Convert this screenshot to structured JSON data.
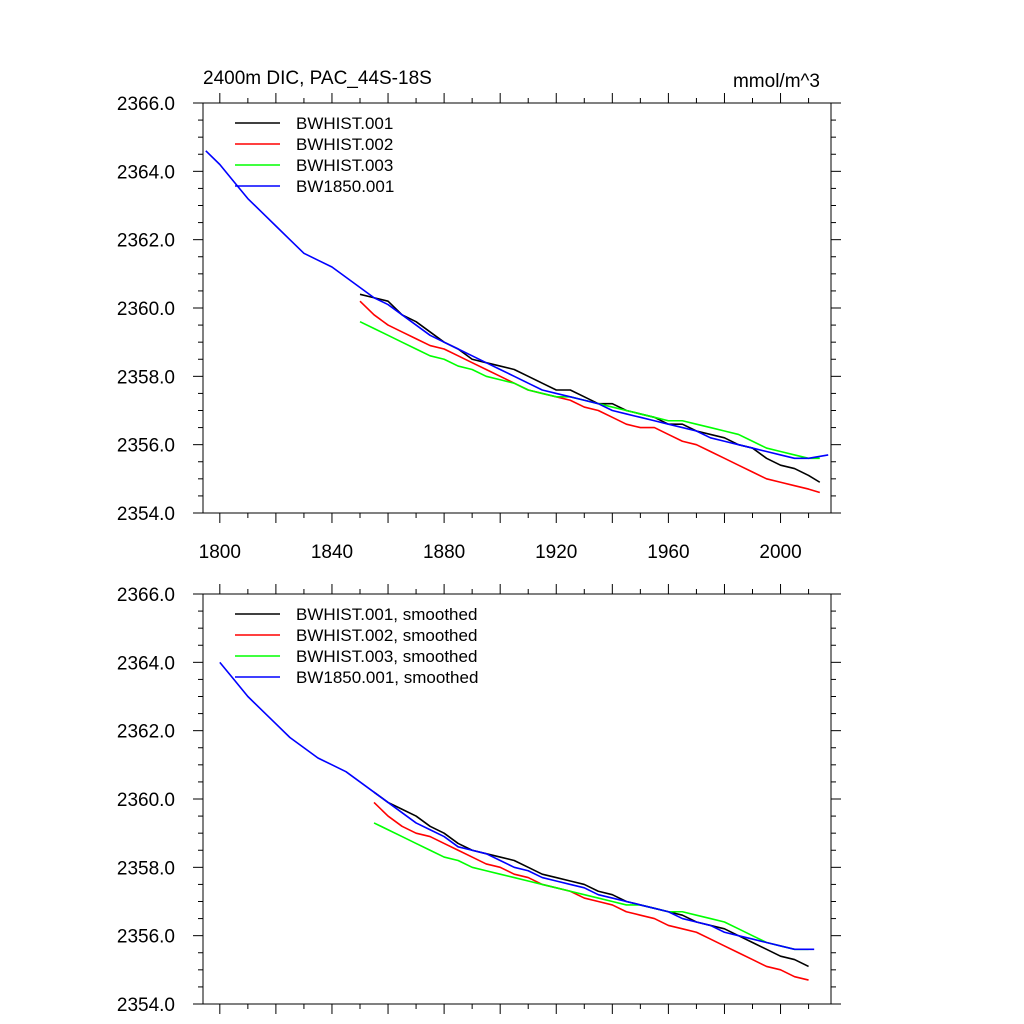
{
  "chart_data": [
    {
      "type": "line",
      "title": "2400m DIC, PAC_44S-18S",
      "units": "mmol/m^3",
      "xlabel": "",
      "ylabel": "",
      "xlim": [
        1794,
        2018
      ],
      "ylim": [
        2354.0,
        2366.0
      ],
      "xticks": [
        "1800",
        "1840",
        "1880",
        "1920",
        "1960",
        "2000"
      ],
      "yticks": [
        "2354.0",
        "2356.0",
        "2358.0",
        "2360.0",
        "2362.0",
        "2364.0",
        "2366.0"
      ],
      "grid": false,
      "legend_position": "top-left",
      "series": [
        {
          "name": "BWHIST.001",
          "color": "#000000",
          "x": [
            1850,
            1855,
            1860,
            1865,
            1870,
            1875,
            1880,
            1885,
            1890,
            1895,
            1900,
            1905,
            1910,
            1915,
            1920,
            1925,
            1930,
            1935,
            1940,
            1945,
            1950,
            1955,
            1960,
            1965,
            1970,
            1975,
            1980,
            1985,
            1990,
            1995,
            2000,
            2005,
            2010,
            2014
          ],
          "y": [
            2360.4,
            2360.3,
            2360.2,
            2359.8,
            2359.6,
            2359.3,
            2359.0,
            2358.8,
            2358.5,
            2358.4,
            2358.3,
            2358.2,
            2358.0,
            2357.8,
            2357.6,
            2357.6,
            2357.4,
            2357.2,
            2357.2,
            2357.0,
            2356.9,
            2356.8,
            2356.6,
            2356.6,
            2356.4,
            2356.3,
            2356.2,
            2356.0,
            2355.9,
            2355.6,
            2355.4,
            2355.3,
            2355.1,
            2354.9
          ]
        },
        {
          "name": "BWHIST.002",
          "color": "#ff0000",
          "x": [
            1850,
            1855,
            1860,
            1865,
            1870,
            1875,
            1880,
            1885,
            1890,
            1895,
            1900,
            1905,
            1910,
            1915,
            1920,
            1925,
            1930,
            1935,
            1940,
            1945,
            1950,
            1955,
            1960,
            1965,
            1970,
            1975,
            1980,
            1985,
            1990,
            1995,
            2000,
            2005,
            2010,
            2014
          ],
          "y": [
            2360.2,
            2359.8,
            2359.5,
            2359.3,
            2359.1,
            2358.9,
            2358.8,
            2358.6,
            2358.4,
            2358.2,
            2358.0,
            2357.8,
            2357.6,
            2357.5,
            2357.4,
            2357.3,
            2357.1,
            2357.0,
            2356.8,
            2356.6,
            2356.5,
            2356.5,
            2356.3,
            2356.1,
            2356.0,
            2355.8,
            2355.6,
            2355.4,
            2355.2,
            2355.0,
            2354.9,
            2354.8,
            2354.7,
            2354.6
          ]
        },
        {
          "name": "BWHIST.003",
          "color": "#00ff00",
          "x": [
            1850,
            1855,
            1860,
            1865,
            1870,
            1875,
            1880,
            1885,
            1890,
            1895,
            1900,
            1905,
            1910,
            1915,
            1920,
            1925,
            1930,
            1935,
            1940,
            1945,
            1950,
            1955,
            1960,
            1965,
            1970,
            1975,
            1980,
            1985,
            1990,
            1995,
            2000,
            2005,
            2010,
            2014
          ],
          "y": [
            2359.6,
            2359.4,
            2359.2,
            2359.0,
            2358.8,
            2358.6,
            2358.5,
            2358.3,
            2358.2,
            2358.0,
            2357.9,
            2357.8,
            2357.6,
            2357.5,
            2357.4,
            2357.4,
            2357.3,
            2357.2,
            2357.1,
            2357.0,
            2356.9,
            2356.8,
            2356.7,
            2356.7,
            2356.6,
            2356.5,
            2356.4,
            2356.3,
            2356.1,
            2355.9,
            2355.8,
            2355.7,
            2355.6,
            2355.6
          ]
        },
        {
          "name": "BW1850.001",
          "color": "#0000ff",
          "x": [
            1795,
            1800,
            1805,
            1810,
            1815,
            1820,
            1825,
            1830,
            1835,
            1840,
            1845,
            1850,
            1855,
            1860,
            1865,
            1870,
            1875,
            1880,
            1885,
            1890,
            1895,
            1900,
            1905,
            1910,
            1915,
            1920,
            1925,
            1930,
            1935,
            1940,
            1945,
            1950,
            1955,
            1960,
            1965,
            1970,
            1975,
            1980,
            1985,
            1990,
            1995,
            2000,
            2005,
            2010,
            2017
          ],
          "y": [
            2364.6,
            2364.2,
            2363.7,
            2363.2,
            2362.8,
            2362.4,
            2362.0,
            2361.6,
            2361.4,
            2361.2,
            2360.9,
            2360.6,
            2360.3,
            2360.1,
            2359.8,
            2359.5,
            2359.2,
            2359.0,
            2358.8,
            2358.6,
            2358.4,
            2358.2,
            2358.0,
            2357.8,
            2357.6,
            2357.5,
            2357.4,
            2357.3,
            2357.2,
            2357.0,
            2356.9,
            2356.8,
            2356.7,
            2356.6,
            2356.5,
            2356.4,
            2356.2,
            2356.1,
            2356.0,
            2355.9,
            2355.8,
            2355.7,
            2355.6,
            2355.6,
            2355.7
          ]
        }
      ]
    },
    {
      "type": "line",
      "title": "",
      "xlabel": "",
      "ylabel": "",
      "xlim": [
        1794,
        2018
      ],
      "ylim": [
        2354.0,
        2366.0
      ],
      "xticks": [],
      "yticks": [
        "2354.0",
        "2356.0",
        "2358.0",
        "2360.0",
        "2362.0",
        "2364.0",
        "2366.0"
      ],
      "grid": false,
      "legend_position": "top-left",
      "series": [
        {
          "name": "BWHIST.001, smoothed",
          "color": "#000000",
          "x": [
            1855,
            1860,
            1865,
            1870,
            1875,
            1880,
            1885,
            1890,
            1895,
            1900,
            1905,
            1910,
            1915,
            1920,
            1925,
            1930,
            1935,
            1940,
            1945,
            1950,
            1955,
            1960,
            1965,
            1970,
            1975,
            1980,
            1985,
            1990,
            1995,
            2000,
            2005,
            2010
          ],
          "y": [
            2360.2,
            2359.9,
            2359.7,
            2359.5,
            2359.2,
            2359.0,
            2358.7,
            2358.5,
            2358.4,
            2358.3,
            2358.2,
            2358.0,
            2357.8,
            2357.7,
            2357.6,
            2357.5,
            2357.3,
            2357.2,
            2357.0,
            2356.9,
            2356.8,
            2356.7,
            2356.6,
            2356.4,
            2356.3,
            2356.2,
            2356.0,
            2355.8,
            2355.6,
            2355.4,
            2355.3,
            2355.1
          ]
        },
        {
          "name": "BWHIST.002, smoothed",
          "color": "#ff0000",
          "x": [
            1855,
            1860,
            1865,
            1870,
            1875,
            1880,
            1885,
            1890,
            1895,
            1900,
            1905,
            1910,
            1915,
            1920,
            1925,
            1930,
            1935,
            1940,
            1945,
            1950,
            1955,
            1960,
            1965,
            1970,
            1975,
            1980,
            1985,
            1990,
            1995,
            2000,
            2005,
            2010
          ],
          "y": [
            2359.9,
            2359.5,
            2359.2,
            2359.0,
            2358.9,
            2358.7,
            2358.5,
            2358.3,
            2358.1,
            2358.0,
            2357.8,
            2357.7,
            2357.5,
            2357.4,
            2357.3,
            2357.1,
            2357.0,
            2356.9,
            2356.7,
            2356.6,
            2356.5,
            2356.3,
            2356.2,
            2356.1,
            2355.9,
            2355.7,
            2355.5,
            2355.3,
            2355.1,
            2355.0,
            2354.8,
            2354.7
          ]
        },
        {
          "name": "BWHIST.003, smoothed",
          "color": "#00ff00",
          "x": [
            1855,
            1860,
            1865,
            1870,
            1875,
            1880,
            1885,
            1890,
            1895,
            1900,
            1905,
            1910,
            1915,
            1920,
            1925,
            1930,
            1935,
            1940,
            1945,
            1950,
            1955,
            1960,
            1965,
            1970,
            1975,
            1980,
            1985,
            1990,
            1995,
            2000,
            2005,
            2010
          ],
          "y": [
            2359.3,
            2359.1,
            2358.9,
            2358.7,
            2358.5,
            2358.3,
            2358.2,
            2358.0,
            2357.9,
            2357.8,
            2357.7,
            2357.6,
            2357.5,
            2357.4,
            2357.3,
            2357.2,
            2357.1,
            2357.0,
            2356.9,
            2356.9,
            2356.8,
            2356.7,
            2356.7,
            2356.6,
            2356.5,
            2356.4,
            2356.2,
            2356.0,
            2355.8,
            2355.7,
            2355.6,
            2355.6
          ]
        },
        {
          "name": "BW1850.001, smoothed",
          "color": "#0000ff",
          "x": [
            1800,
            1805,
            1810,
            1815,
            1820,
            1825,
            1830,
            1835,
            1840,
            1845,
            1850,
            1855,
            1860,
            1865,
            1870,
            1875,
            1880,
            1885,
            1890,
            1895,
            1900,
            1905,
            1910,
            1915,
            1920,
            1925,
            1930,
            1935,
            1940,
            1945,
            1950,
            1955,
            1960,
            1965,
            1970,
            1975,
            1980,
            1985,
            1990,
            1995,
            2000,
            2005,
            2010,
            2012
          ],
          "y": [
            2364.0,
            2363.5,
            2363.0,
            2362.6,
            2362.2,
            2361.8,
            2361.5,
            2361.2,
            2361.0,
            2360.8,
            2360.5,
            2360.2,
            2359.9,
            2359.6,
            2359.3,
            2359.1,
            2358.9,
            2358.6,
            2358.5,
            2358.4,
            2358.2,
            2358.0,
            2357.9,
            2357.7,
            2357.6,
            2357.5,
            2357.4,
            2357.2,
            2357.1,
            2357.0,
            2356.9,
            2356.8,
            2356.7,
            2356.5,
            2356.4,
            2356.3,
            2356.1,
            2356.0,
            2355.9,
            2355.8,
            2355.7,
            2355.6,
            2355.6,
            2355.6
          ]
        }
      ]
    }
  ]
}
